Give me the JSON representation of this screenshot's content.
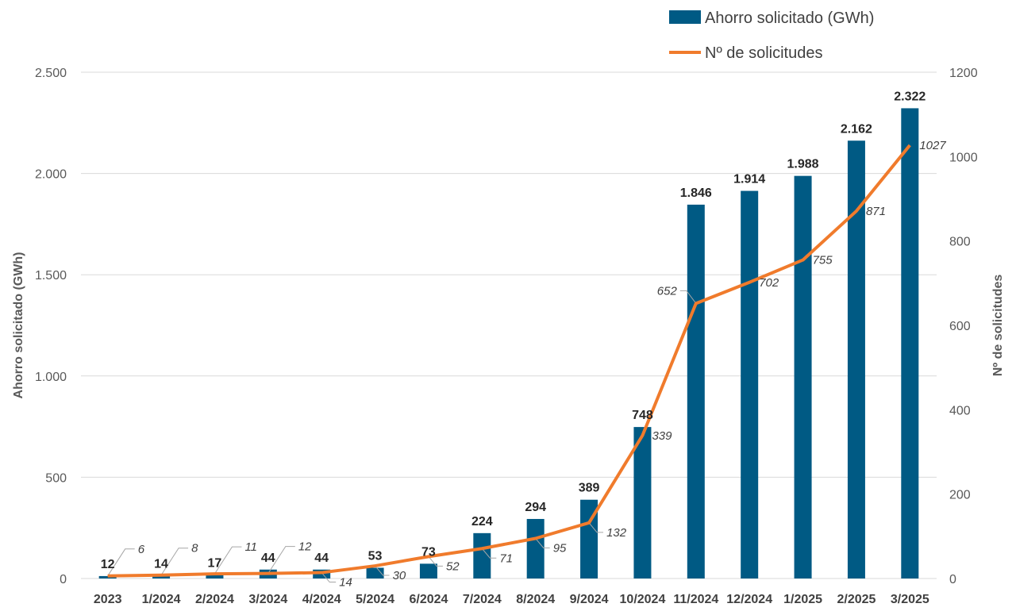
{
  "chart_data": {
    "type": "bar+line",
    "categories": [
      "2023",
      "1/2024",
      "2/2024",
      "3/2024",
      "4/2024",
      "5/2024",
      "6/2024",
      "7/2024",
      "8/2024",
      "9/2024",
      "10/2024",
      "11/2024",
      "12/2024",
      "1/2025",
      "2/2025",
      "3/2025"
    ],
    "series": [
      {
        "name": "Ahorro solicitado (GWh)",
        "type": "bar",
        "axis": "left",
        "values": [
          12,
          14,
          17,
          44,
          44,
          53,
          73,
          224,
          294,
          389,
          748,
          1846,
          1914,
          1988,
          2162,
          2322
        ],
        "labels": [
          "12",
          "14",
          "17",
          "44",
          "44",
          "53",
          "73",
          "224",
          "294",
          "389",
          "748",
          "1.846",
          "1.914",
          "1.988",
          "2.162",
          "2.322"
        ],
        "color": "#005a84"
      },
      {
        "name": "Nº de solicitudes",
        "type": "line",
        "axis": "right",
        "values": [
          6,
          8,
          11,
          12,
          14,
          30,
          52,
          71,
          95,
          132,
          339,
          652,
          702,
          755,
          871,
          1027
        ],
        "labels": [
          "6",
          "8",
          "11",
          "12",
          "14",
          "30",
          "52",
          "71",
          "95",
          "132",
          "339",
          "652",
          "702",
          "755",
          "871",
          "1027"
        ],
        "color": "#f07b2c"
      }
    ],
    "left_axis": {
      "title": "Ahorro solicitado (GWh)",
      "range": [
        0,
        2500
      ],
      "ticks": [
        0,
        500,
        1000,
        1500,
        2000,
        2500
      ],
      "tick_labels": [
        "0",
        "500",
        "1.000",
        "1.500",
        "2.000",
        "2.500"
      ]
    },
    "right_axis": {
      "title": "Nº de solicitudes",
      "range": [
        0,
        1200
      ],
      "ticks": [
        0,
        200,
        400,
        600,
        800,
        1000,
        1200
      ],
      "tick_labels": [
        "0",
        "200",
        "400",
        "600",
        "800",
        "1000",
        "1200"
      ]
    },
    "grid": true,
    "legend_position": "top-right",
    "colors": {
      "grid": "#d9d9d9",
      "bar": "#005a84",
      "line": "#f07b2c",
      "leader": "#a6a6a6"
    }
  }
}
